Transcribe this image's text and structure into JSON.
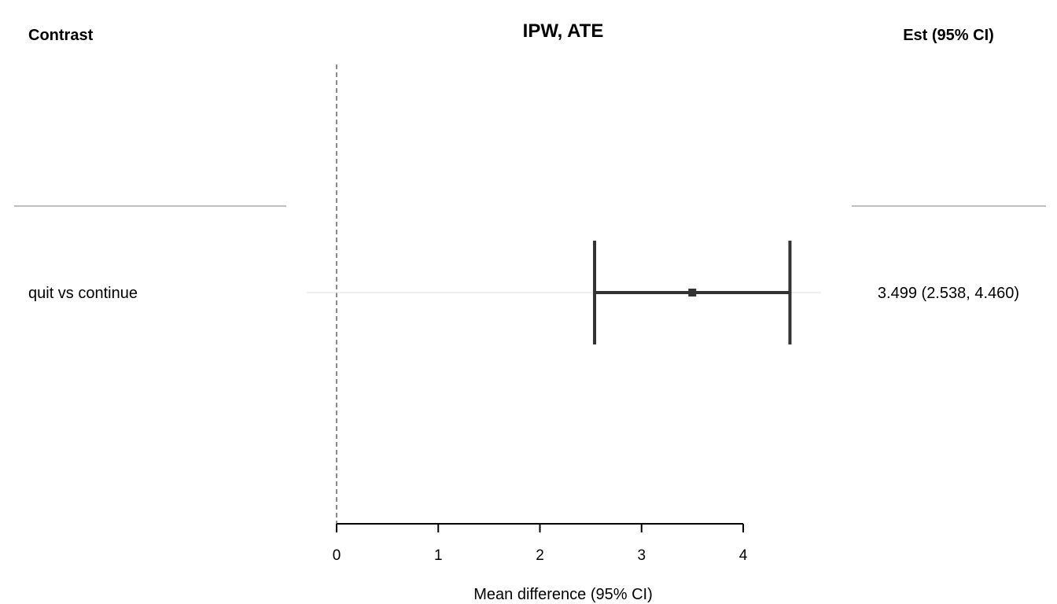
{
  "headers": {
    "left": "Contrast",
    "right": "Est (95% CI)"
  },
  "chart_data": {
    "type": "forest",
    "title": "IPW, ATE",
    "xlabel": "Mean difference (95% CI)",
    "xlim": [
      0,
      4
    ],
    "xticks": [
      "0",
      "1",
      "2",
      "3",
      "4"
    ],
    "reference_line": 0,
    "rows": [
      {
        "label": "quit vs continue",
        "estimate": 3.499,
        "lower": 2.538,
        "upper": 4.46,
        "est_text": "3.499 (2.538, 4.460)"
      }
    ]
  },
  "colors": {
    "marker": "#333333",
    "axis": "#000000",
    "separator": "#aaaaaa",
    "row_guide": "#e0e0e0",
    "reference": "#666666"
  }
}
